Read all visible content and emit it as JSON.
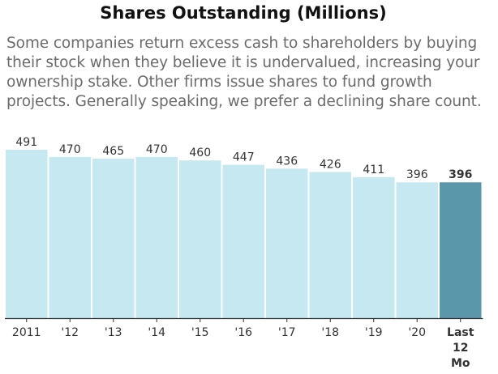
{
  "title": "Shares Outstanding (Millions)",
  "description_lines": [
    "Some companies return excess cash to shareholders by buying",
    "their stock when they believe it is undervalued, increasing your",
    "ownership stake. Other firms issue shares to fund growth",
    "projects. Generally speaking, we prefer a declining share count."
  ],
  "colors": {
    "bar": "#c5e8f1",
    "bar_highlight": "#5b97aa",
    "axis": "#333333",
    "value_label": "#333333",
    "tick_label": "#333333",
    "description": "#6b6b6b",
    "title": "#111111"
  },
  "chart_data": {
    "type": "bar",
    "categories": [
      "2011",
      "'12",
      "'13",
      "'14",
      "'15",
      "'16",
      "'17",
      "'18",
      "'19",
      "'20",
      "Last 12 Mo"
    ],
    "values": [
      491,
      470,
      465,
      470,
      460,
      447,
      436,
      426,
      411,
      396,
      396
    ],
    "value_labels": [
      "491",
      "470",
      "465",
      "470",
      "460",
      "447",
      "436",
      "426",
      "411",
      "396",
      "396"
    ],
    "highlighted_index": 10,
    "ylim": [
      0,
      491
    ],
    "grid": false,
    "legend": "none",
    "xlabel": "",
    "ylabel": ""
  }
}
